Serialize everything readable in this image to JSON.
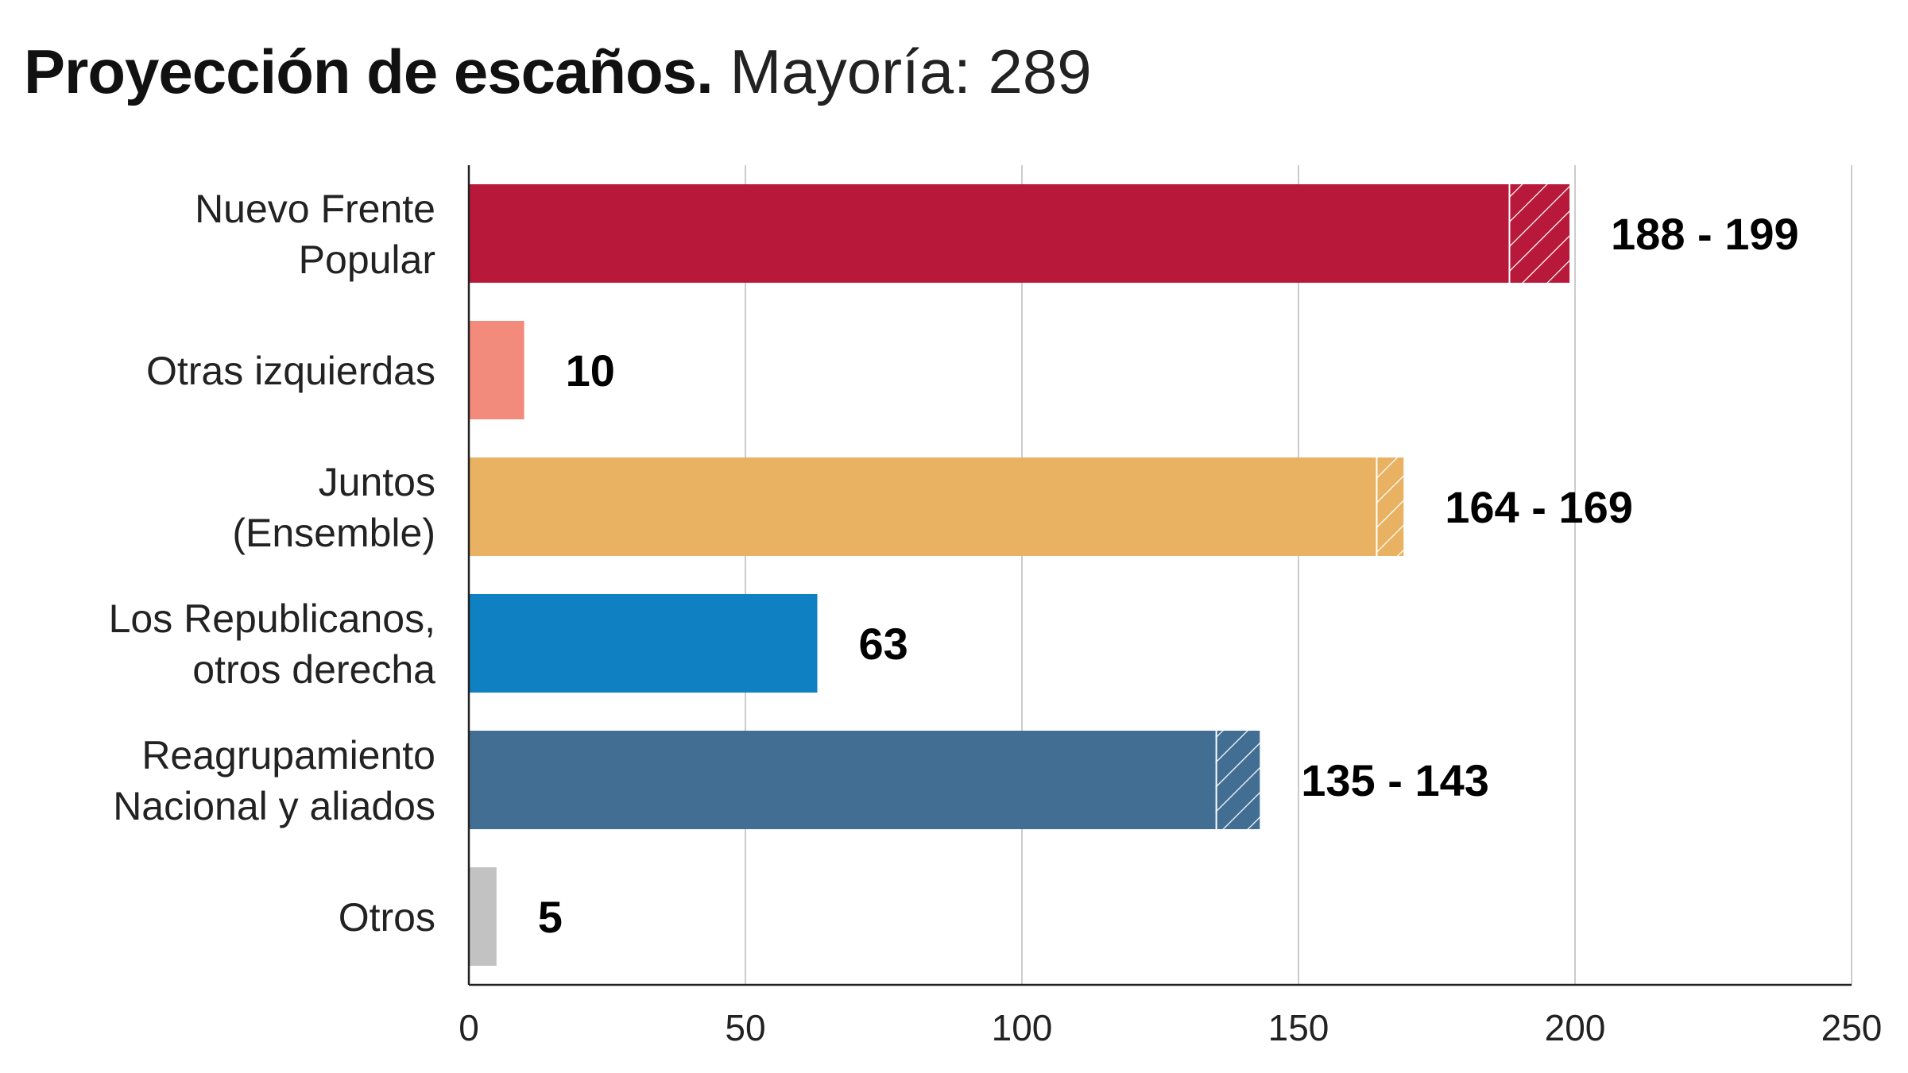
{
  "title": {
    "bold": "Proyección de escaños.",
    "light": "Mayoría: 289"
  },
  "chart_data": {
    "type": "bar",
    "orientation": "horizontal",
    "title": "Proyección de escaños. Mayoría: 289",
    "xlim": [
      0,
      250
    ],
    "xticks": [
      0,
      50,
      100,
      150,
      200,
      250
    ],
    "grid": true,
    "categories": [
      {
        "label_lines": [
          "Nuevo Frente",
          "Popular"
        ],
        "min": 188,
        "max": 199,
        "value_label": "188 - 199",
        "color": "#b8183a"
      },
      {
        "label_lines": [
          "Otras izquierdas"
        ],
        "min": 10,
        "max": 10,
        "value_label": "10",
        "color": "#f28b7b"
      },
      {
        "label_lines": [
          "Juntos",
          "(Ensemble)"
        ],
        "min": 164,
        "max": 169,
        "value_label": "164 - 169",
        "color": "#e8b262"
      },
      {
        "label_lines": [
          "Los Republicanos,",
          "otros derecha"
        ],
        "min": 63,
        "max": 63,
        "value_label": "63",
        "color": "#0f80c1"
      },
      {
        "label_lines": [
          "Reagrupamiento",
          "Nacional y aliados"
        ],
        "min": 135,
        "max": 143,
        "value_label": "135 - 143",
        "color": "#426e94"
      },
      {
        "label_lines": [
          "Otros"
        ],
        "min": 5,
        "max": 5,
        "value_label": "5",
        "color": "#c2c2c2"
      }
    ]
  }
}
